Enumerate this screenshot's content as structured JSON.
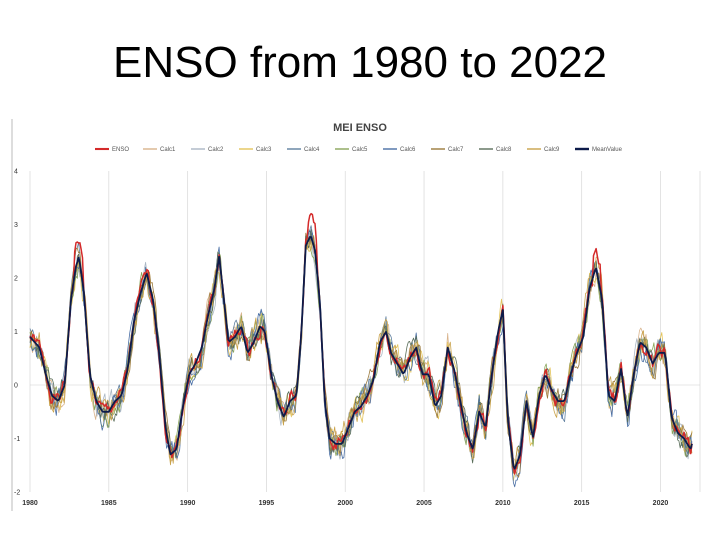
{
  "slide": {
    "title": "ENSO from 1980 to 2022"
  },
  "chart_data": {
    "type": "line",
    "title": "MEI ENSO",
    "xlabel": "",
    "ylabel": "",
    "xlim": [
      1980,
      2022
    ],
    "ylim": [
      -2,
      4
    ],
    "x_ticks": [
      "1980",
      "1985",
      "1990",
      "1995",
      "2000",
      "2005",
      "2010",
      "2015",
      "2020"
    ],
    "y_ticks": [
      "-2",
      "-1",
      "0",
      "1",
      "2",
      "3",
      "4"
    ],
    "grid": "vertical",
    "legend_position": "top",
    "series": [
      {
        "name": "ENSO",
        "color": "#d42a2a",
        "width": 1.5,
        "noise": 0.12,
        "seed": 1
      },
      {
        "name": "Calc1",
        "color": "#d9b38c",
        "width": 0.8,
        "noise": 0.2,
        "seed": 2
      },
      {
        "name": "Calc2",
        "color": "#aab7c4",
        "width": 0.8,
        "noise": 0.2,
        "seed": 3
      },
      {
        "name": "Calc3",
        "color": "#e3c45a",
        "width": 0.8,
        "noise": 0.22,
        "seed": 4
      },
      {
        "name": "Calc4",
        "color": "#5f7f9f",
        "width": 0.8,
        "noise": 0.2,
        "seed": 5
      },
      {
        "name": "Calc5",
        "color": "#8aa55a",
        "width": 0.8,
        "noise": 0.2,
        "seed": 6
      },
      {
        "name": "Calc6",
        "color": "#4a6fa5",
        "width": 0.8,
        "noise": 0.22,
        "seed": 7
      },
      {
        "name": "Calc7",
        "color": "#9b7a3c",
        "width": 0.8,
        "noise": 0.2,
        "seed": 8
      },
      {
        "name": "Calc8",
        "color": "#5a6e5a",
        "width": 0.8,
        "noise": 0.2,
        "seed": 9
      },
      {
        "name": "Calc9",
        "color": "#c9a24a",
        "width": 0.8,
        "noise": 0.24,
        "seed": 10
      },
      {
        "name": "MeanValue",
        "color": "#0d1b4a",
        "width": 1.8,
        "noise": 0.0,
        "seed": 11
      }
    ],
    "mean_curve": {
      "x": [
        1980.0,
        1980.3,
        1980.6,
        1981.0,
        1981.4,
        1981.8,
        1982.2,
        1982.6,
        1982.9,
        1983.1,
        1983.4,
        1983.8,
        1984.2,
        1984.6,
        1985.0,
        1985.4,
        1985.8,
        1986.2,
        1986.6,
        1987.0,
        1987.4,
        1987.8,
        1988.2,
        1988.6,
        1988.9,
        1989.3,
        1989.7,
        1990.1,
        1990.5,
        1990.9,
        1991.3,
        1991.7,
        1992.0,
        1992.3,
        1992.6,
        1993.0,
        1993.4,
        1993.8,
        1994.2,
        1994.6,
        1994.9,
        1995.3,
        1995.7,
        1996.1,
        1996.5,
        1996.9,
        1997.2,
        1997.5,
        1997.8,
        1998.1,
        1998.4,
        1998.7,
        1999.0,
        1999.4,
        1999.8,
        2000.2,
        2000.6,
        2001.0,
        2001.4,
        2001.8,
        2002.2,
        2002.6,
        2002.9,
        2003.3,
        2003.7,
        2004.1,
        2004.5,
        2004.9,
        2005.3,
        2005.7,
        2006.1,
        2006.5,
        2006.9,
        2007.3,
        2007.7,
        2008.1,
        2008.5,
        2008.9,
        2009.3,
        2009.7,
        2010.0,
        2010.3,
        2010.7,
        2011.1,
        2011.5,
        2011.9,
        2012.3,
        2012.7,
        2013.1,
        2013.5,
        2013.9,
        2014.3,
        2014.7,
        2015.1,
        2015.5,
        2015.9,
        2016.3,
        2016.7,
        2017.1,
        2017.5,
        2017.9,
        2018.3,
        2018.7,
        2019.1,
        2019.5,
        2019.9,
        2020.3,
        2020.7,
        2021.1,
        2021.5,
        2021.9,
        2022.0
      ],
      "y": [
        0.9,
        0.8,
        0.7,
        0.2,
        -0.2,
        -0.3,
        0.0,
        1.6,
        2.2,
        2.4,
        1.8,
        0.2,
        -0.3,
        -0.5,
        -0.5,
        -0.3,
        -0.2,
        0.3,
        1.2,
        1.7,
        2.1,
        1.6,
        0.6,
        -0.8,
        -1.3,
        -1.2,
        -0.4,
        0.2,
        0.4,
        0.7,
        1.3,
        1.8,
        2.4,
        1.6,
        0.8,
        0.9,
        1.1,
        0.6,
        0.8,
        1.1,
        1.0,
        0.2,
        -0.3,
        -0.6,
        -0.3,
        -0.2,
        0.9,
        2.6,
        2.8,
        2.5,
        1.5,
        -0.3,
        -1.0,
        -1.1,
        -1.1,
        -0.8,
        -0.5,
        -0.4,
        -0.2,
        0.1,
        0.8,
        1.0,
        0.6,
        0.4,
        0.2,
        0.5,
        0.7,
        0.2,
        0.2,
        -0.4,
        -0.2,
        0.7,
        0.3,
        -0.3,
        -0.9,
        -1.2,
        -0.5,
        -0.8,
        0.2,
        1.0,
        1.4,
        -0.6,
        -1.6,
        -1.3,
        -0.3,
        -1.0,
        -0.2,
        0.2,
        -0.1,
        -0.3,
        -0.3,
        0.2,
        0.6,
        0.9,
        1.8,
        2.2,
        1.6,
        -0.2,
        -0.3,
        0.3,
        -0.6,
        0.2,
        0.8,
        0.7,
        0.4,
        0.6,
        0.6,
        -0.6,
        -0.9,
        -1.0,
        -1.2,
        -1.1
      ]
    }
  }
}
